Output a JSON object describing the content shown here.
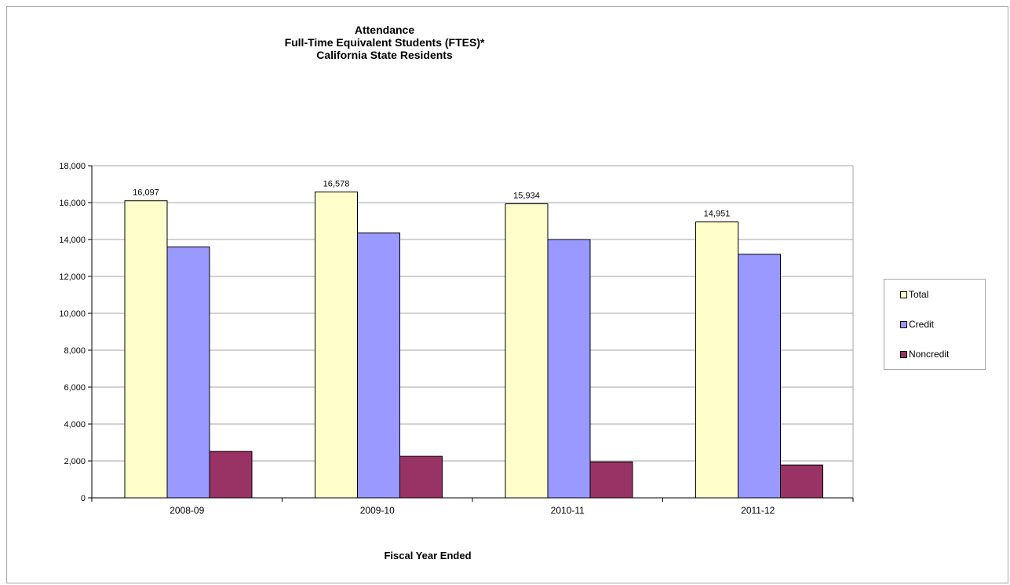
{
  "chart_data": {
    "type": "bar",
    "title_lines": [
      "Attendance",
      "Full-Time Equivalent Students (FTES)*",
      "California State Residents"
    ],
    "xlabel": "Fiscal Year Ended",
    "ylabel": "",
    "categories": [
      "2008-09",
      "2009-10",
      "2010-11",
      "2011-12"
    ],
    "series": [
      {
        "name": "Total",
        "values": [
          16097,
          16578,
          15934,
          14951
        ],
        "color": "#ffffcc",
        "labels": [
          "16,097",
          "16,578",
          "15,934",
          "14,951"
        ]
      },
      {
        "name": "Credit",
        "values": [
          13600,
          14350,
          14000,
          13200
        ],
        "color": "#9999ff"
      },
      {
        "name": "Noncredit",
        "values": [
          2520,
          2250,
          1950,
          1780
        ],
        "color": "#993366"
      }
    ],
    "ylim": [
      0,
      18000
    ],
    "yticks": [
      0,
      2000,
      4000,
      6000,
      8000,
      10000,
      12000,
      14000,
      16000,
      18000
    ],
    "ytick_labels": [
      "0",
      "2,000",
      "4,000",
      "6,000",
      "8,000",
      "10,000",
      "12,000",
      "14,000",
      "16,000",
      "18,000"
    ],
    "grid": true,
    "legend_position": "right"
  }
}
